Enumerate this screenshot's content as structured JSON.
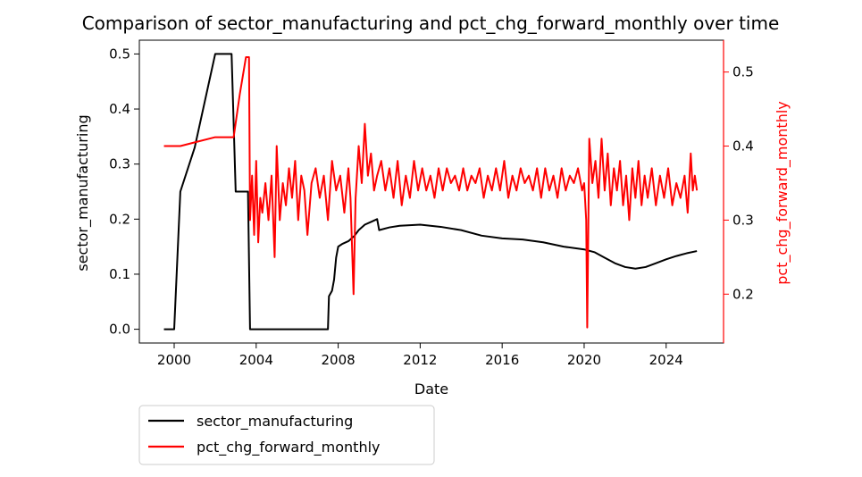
{
  "chart_data": {
    "type": "line",
    "title": "Comparison of sector_manufacturing and pct_chg_forward_monthly over time",
    "xlabel": "Date",
    "ylabel_left": "sector_manufacturing",
    "ylabel_right": "pct_chg_forward_monthly",
    "xlim": [
      1998.3,
      2026.8
    ],
    "ylim_left": [
      -0.025,
      0.525
    ],
    "ylim_right": [
      0.134,
      0.543
    ],
    "x_ticks": [
      2000,
      2004,
      2008,
      2012,
      2016,
      2020,
      2024
    ],
    "y_ticks_left": [
      0.0,
      0.1,
      0.2,
      0.3,
      0.4,
      0.5
    ],
    "y_ticks_right": [
      0.2,
      0.3,
      0.4,
      0.5
    ],
    "grid": false,
    "legend_position": "below-left",
    "series": [
      {
        "name": "sector_manufacturing",
        "axis": "left",
        "color": "#000000",
        "points": [
          [
            1999.5,
            0.0
          ],
          [
            2000.0,
            0.0
          ],
          [
            2000.3,
            0.25
          ],
          [
            2001.0,
            0.33
          ],
          [
            2002.0,
            0.5
          ],
          [
            2002.8,
            0.5
          ],
          [
            2003.0,
            0.25
          ],
          [
            2003.6,
            0.25
          ],
          [
            2003.7,
            0.0
          ],
          [
            2007.5,
            0.0
          ],
          [
            2007.55,
            0.06
          ],
          [
            2007.7,
            0.07
          ],
          [
            2007.8,
            0.09
          ],
          [
            2007.9,
            0.13
          ],
          [
            2008.0,
            0.15
          ],
          [
            2008.2,
            0.155
          ],
          [
            2008.5,
            0.16
          ],
          [
            2008.8,
            0.17
          ],
          [
            2009.0,
            0.18
          ],
          [
            2009.3,
            0.19
          ],
          [
            2009.6,
            0.195
          ],
          [
            2009.9,
            0.2
          ],
          [
            2010.0,
            0.18
          ],
          [
            2010.5,
            0.185
          ],
          [
            2011.0,
            0.188
          ],
          [
            2012.0,
            0.19
          ],
          [
            2013.0,
            0.186
          ],
          [
            2014.0,
            0.18
          ],
          [
            2015.0,
            0.17
          ],
          [
            2016.0,
            0.165
          ],
          [
            2017.0,
            0.163
          ],
          [
            2018.0,
            0.158
          ],
          [
            2019.0,
            0.15
          ],
          [
            2020.0,
            0.145
          ],
          [
            2020.5,
            0.14
          ],
          [
            2021.0,
            0.13
          ],
          [
            2021.5,
            0.12
          ],
          [
            2022.0,
            0.113
          ],
          [
            2022.5,
            0.11
          ],
          [
            2023.0,
            0.113
          ],
          [
            2023.5,
            0.12
          ],
          [
            2024.0,
            0.127
          ],
          [
            2024.5,
            0.133
          ],
          [
            2025.0,
            0.138
          ],
          [
            2025.5,
            0.142
          ]
        ]
      },
      {
        "name": "pct_chg_forward_monthly",
        "axis": "right",
        "color": "#ff0000",
        "points": [
          [
            1999.5,
            0.4
          ],
          [
            2000.3,
            0.4
          ],
          [
            2001.0,
            0.405
          ],
          [
            2002.0,
            0.412
          ],
          [
            2002.9,
            0.412
          ],
          [
            2003.2,
            0.47
          ],
          [
            2003.5,
            0.52
          ],
          [
            2003.65,
            0.52
          ],
          [
            2003.7,
            0.3
          ],
          [
            2003.8,
            0.36
          ],
          [
            2003.9,
            0.28
          ],
          [
            2004.0,
            0.38
          ],
          [
            2004.1,
            0.27
          ],
          [
            2004.2,
            0.33
          ],
          [
            2004.3,
            0.31
          ],
          [
            2004.45,
            0.35
          ],
          [
            2004.6,
            0.3
          ],
          [
            2004.75,
            0.36
          ],
          [
            2004.9,
            0.25
          ],
          [
            2005.0,
            0.4
          ],
          [
            2005.15,
            0.3
          ],
          [
            2005.3,
            0.35
          ],
          [
            2005.45,
            0.32
          ],
          [
            2005.6,
            0.37
          ],
          [
            2005.75,
            0.33
          ],
          [
            2005.9,
            0.38
          ],
          [
            2006.05,
            0.3
          ],
          [
            2006.2,
            0.36
          ],
          [
            2006.35,
            0.34
          ],
          [
            2006.5,
            0.28
          ],
          [
            2006.7,
            0.35
          ],
          [
            2006.9,
            0.37
          ],
          [
            2007.1,
            0.33
          ],
          [
            2007.3,
            0.36
          ],
          [
            2007.5,
            0.3
          ],
          [
            2007.7,
            0.38
          ],
          [
            2007.9,
            0.34
          ],
          [
            2008.1,
            0.36
          ],
          [
            2008.3,
            0.31
          ],
          [
            2008.5,
            0.37
          ],
          [
            2008.6,
            0.33
          ],
          [
            2008.75,
            0.2
          ],
          [
            2008.85,
            0.33
          ],
          [
            2009.0,
            0.4
          ],
          [
            2009.15,
            0.35
          ],
          [
            2009.3,
            0.43
          ],
          [
            2009.45,
            0.36
          ],
          [
            2009.6,
            0.39
          ],
          [
            2009.75,
            0.34
          ],
          [
            2009.9,
            0.36
          ],
          [
            2010.1,
            0.38
          ],
          [
            2010.3,
            0.34
          ],
          [
            2010.5,
            0.37
          ],
          [
            2010.7,
            0.33
          ],
          [
            2010.9,
            0.38
          ],
          [
            2011.1,
            0.32
          ],
          [
            2011.3,
            0.36
          ],
          [
            2011.5,
            0.33
          ],
          [
            2011.7,
            0.38
          ],
          [
            2011.9,
            0.34
          ],
          [
            2012.1,
            0.37
          ],
          [
            2012.3,
            0.34
          ],
          [
            2012.5,
            0.36
          ],
          [
            2012.7,
            0.33
          ],
          [
            2012.9,
            0.37
          ],
          [
            2013.1,
            0.34
          ],
          [
            2013.3,
            0.37
          ],
          [
            2013.5,
            0.35
          ],
          [
            2013.7,
            0.36
          ],
          [
            2013.9,
            0.34
          ],
          [
            2014.1,
            0.37
          ],
          [
            2014.3,
            0.34
          ],
          [
            2014.5,
            0.36
          ],
          [
            2014.7,
            0.35
          ],
          [
            2014.9,
            0.37
          ],
          [
            2015.1,
            0.33
          ],
          [
            2015.3,
            0.36
          ],
          [
            2015.5,
            0.34
          ],
          [
            2015.7,
            0.37
          ],
          [
            2015.9,
            0.34
          ],
          [
            2016.1,
            0.38
          ],
          [
            2016.3,
            0.33
          ],
          [
            2016.5,
            0.36
          ],
          [
            2016.7,
            0.34
          ],
          [
            2016.9,
            0.37
          ],
          [
            2017.1,
            0.35
          ],
          [
            2017.3,
            0.36
          ],
          [
            2017.5,
            0.34
          ],
          [
            2017.7,
            0.37
          ],
          [
            2017.9,
            0.33
          ],
          [
            2018.1,
            0.37
          ],
          [
            2018.3,
            0.34
          ],
          [
            2018.5,
            0.36
          ],
          [
            2018.7,
            0.33
          ],
          [
            2018.9,
            0.37
          ],
          [
            2019.1,
            0.34
          ],
          [
            2019.3,
            0.36
          ],
          [
            2019.5,
            0.35
          ],
          [
            2019.7,
            0.37
          ],
          [
            2019.9,
            0.34
          ],
          [
            2020.0,
            0.35
          ],
          [
            2020.1,
            0.3
          ],
          [
            2020.15,
            0.155
          ],
          [
            2020.25,
            0.41
          ],
          [
            2020.4,
            0.35
          ],
          [
            2020.55,
            0.38
          ],
          [
            2020.7,
            0.33
          ],
          [
            2020.85,
            0.41
          ],
          [
            2021.0,
            0.34
          ],
          [
            2021.15,
            0.39
          ],
          [
            2021.3,
            0.32
          ],
          [
            2021.45,
            0.37
          ],
          [
            2021.6,
            0.34
          ],
          [
            2021.75,
            0.38
          ],
          [
            2021.9,
            0.32
          ],
          [
            2022.05,
            0.36
          ],
          [
            2022.2,
            0.3
          ],
          [
            2022.35,
            0.37
          ],
          [
            2022.5,
            0.33
          ],
          [
            2022.65,
            0.38
          ],
          [
            2022.8,
            0.32
          ],
          [
            2022.95,
            0.36
          ],
          [
            2023.1,
            0.33
          ],
          [
            2023.3,
            0.37
          ],
          [
            2023.5,
            0.32
          ],
          [
            2023.7,
            0.36
          ],
          [
            2023.9,
            0.33
          ],
          [
            2024.1,
            0.37
          ],
          [
            2024.3,
            0.32
          ],
          [
            2024.5,
            0.35
          ],
          [
            2024.7,
            0.33
          ],
          [
            2024.9,
            0.36
          ],
          [
            2025.05,
            0.31
          ],
          [
            2025.2,
            0.39
          ],
          [
            2025.3,
            0.34
          ],
          [
            2025.4,
            0.36
          ],
          [
            2025.5,
            0.34
          ]
        ]
      }
    ]
  }
}
